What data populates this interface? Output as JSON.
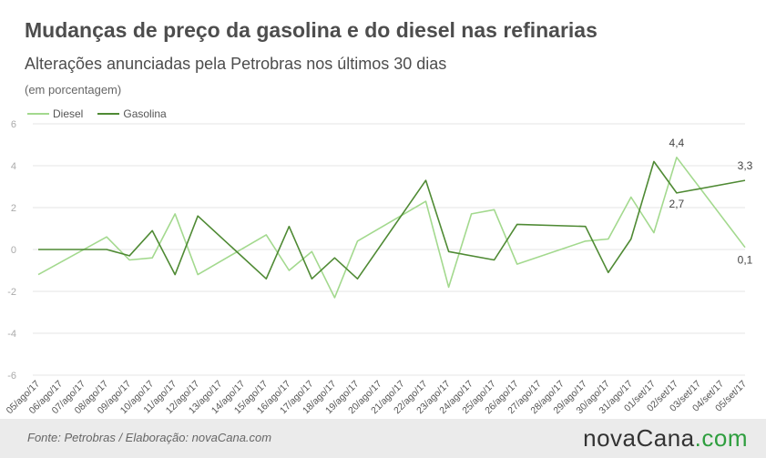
{
  "chart_data": {
    "type": "line",
    "title": "Mudanças de preço da gasolina e do diesel nas refinarias",
    "subtitle": "Alterações anunciadas pela Petrobras nos últimos 30 dias",
    "ylabel": "(em porcentagem)",
    "ylim": [
      -6,
      6
    ],
    "yticks": [
      "6",
      "4",
      "2",
      "0",
      "-2",
      "-4",
      "-6"
    ],
    "grid": true,
    "legend_position": "top-left",
    "categories": [
      "05/ago/17",
      "06/ago/17",
      "07/ago/17",
      "08/ago/17",
      "09/ago/17",
      "10/ago/17",
      "11/ago/17",
      "12/ago/17",
      "13/ago/17",
      "14/ago/17",
      "15/ago/17",
      "16/ago/17",
      "17/ago/17",
      "18/ago/17",
      "19/ago/17",
      "20/ago/17",
      "21/ago/17",
      "22/ago/17",
      "23/ago/17",
      "24/ago/17",
      "25/ago/17",
      "26/ago/17",
      "27/ago/17",
      "28/ago/17",
      "29/ago/17",
      "30/ago/17",
      "31/ago/17",
      "01/set/17",
      "02/set/17",
      "03/set/17",
      "04/set/17",
      "05/set/17"
    ],
    "series": [
      {
        "name": "Diesel",
        "color": "#a3d98e",
        "points": [
          [
            0,
            -1.2
          ],
          [
            3,
            0.6
          ],
          [
            4,
            -0.5
          ],
          [
            5,
            -0.4
          ],
          [
            6,
            1.7
          ],
          [
            7,
            -1.2
          ],
          [
            10,
            0.7
          ],
          [
            11,
            -1.0
          ],
          [
            12,
            -0.1
          ],
          [
            13,
            -2.3
          ],
          [
            14,
            0.4
          ],
          [
            17,
            2.3
          ],
          [
            18,
            -1.8
          ],
          [
            19,
            1.7
          ],
          [
            20,
            1.9
          ],
          [
            21,
            -0.7
          ],
          [
            24,
            0.4
          ],
          [
            25,
            0.5
          ],
          [
            26,
            2.5
          ],
          [
            27,
            0.8
          ],
          [
            28,
            4.4
          ],
          [
            31,
            0.1
          ]
        ]
      },
      {
        "name": "Gasolina",
        "color": "#4f8a34",
        "points": [
          [
            0,
            0.0
          ],
          [
            3,
            0.0
          ],
          [
            4,
            -0.3
          ],
          [
            5,
            0.9
          ],
          [
            6,
            -1.2
          ],
          [
            7,
            1.6
          ],
          [
            10,
            -1.4
          ],
          [
            11,
            1.1
          ],
          [
            12,
            -1.4
          ],
          [
            13,
            -0.4
          ],
          [
            14,
            -1.4
          ],
          [
            17,
            3.3
          ],
          [
            18,
            -0.1
          ],
          [
            20,
            -0.5
          ],
          [
            21,
            1.2
          ],
          [
            24,
            1.1
          ],
          [
            25,
            -1.1
          ],
          [
            26,
            0.5
          ],
          [
            27,
            4.2
          ],
          [
            28,
            2.7
          ],
          [
            31,
            3.3
          ]
        ]
      }
    ],
    "annotations": [
      {
        "label": "4,4",
        "index": 28,
        "value": 4.4,
        "series": "Diesel"
      },
      {
        "label": "2,7",
        "index": 28,
        "value": 2.7,
        "series": "Gasolina"
      },
      {
        "label": "3,3",
        "index": 31,
        "value": 3.3,
        "series": "Gasolina"
      },
      {
        "label": "0,1",
        "index": 31,
        "value": 0.1,
        "series": "Diesel"
      }
    ]
  },
  "footer": {
    "source": "Fonte:  Petrobras  / Elaboração:  novaCana.com",
    "brand_main": "novaCana",
    "brand_suffix": ".com"
  }
}
